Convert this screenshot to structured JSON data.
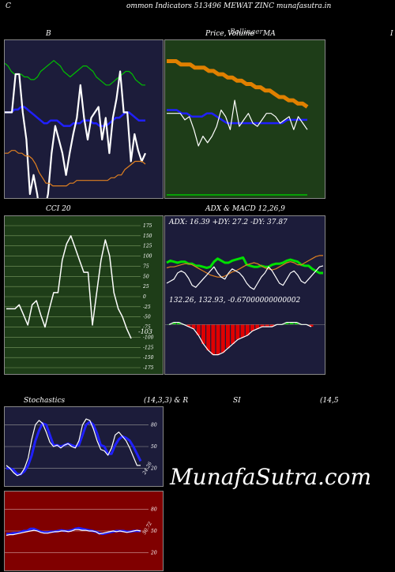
{
  "header": {
    "left_letter": "C",
    "title": "ommon  Indicators 513496  MEWAT ZINC munafasutra.in"
  },
  "watermark": "MunafaSutra.com",
  "colors": {
    "bb_bg": "#1c1c3a",
    "price_bg": "#1e3d18",
    "cci_bg": "#1e3d18",
    "adx_bg": "#1c1c3a",
    "stoch_bg": "#1c1c3a",
    "rsi_bg": "#800000"
  },
  "panels": {
    "bb": {
      "title": "B"
    },
    "price": {
      "title_a": "Price,",
      "title_b": "Volume",
      "title_c": "MA",
      "overlap_text": "Bollinger"
    },
    "cci": {
      "title": "CCI 20",
      "last_value": "-103"
    },
    "adx": {
      "title": "ADX  & MACD 12,26,9",
      "adx_readout": "ADX: 16.39  +DY: 27.2  -DY: 37.87",
      "macd_readout": "132.26,  132.93,  -0.67000000000002"
    },
    "stoch": {
      "title_left": "Stochastics",
      "title_right": "(14,3,3) & R",
      "last_label": "24.26"
    },
    "rsi": {
      "title_mid": "SI",
      "title_right": "(14,5",
      "last_label": "50.72"
    },
    "right_edge_letter": "I"
  },
  "chart_data": [
    {
      "type": "line",
      "name": "Bollinger Bands",
      "series": [
        {
          "color": "#00c000",
          "values": [
            88,
            87,
            85,
            84,
            84,
            84,
            83,
            83,
            82,
            82,
            83,
            85,
            86,
            87,
            88,
            89,
            88,
            87,
            85,
            84,
            83,
            84,
            85,
            86,
            87,
            87,
            86,
            85,
            83,
            82,
            81,
            80,
            80,
            81,
            82,
            83,
            84,
            85,
            85,
            84,
            82,
            81,
            80,
            80
          ]
        },
        {
          "color": "#2020ff",
          "values": [
            70,
            70,
            70,
            71,
            71,
            72,
            72,
            71,
            70,
            69,
            68,
            67,
            66,
            66,
            67,
            67,
            67,
            66,
            65,
            65,
            65,
            66,
            66,
            66,
            67,
            67,
            67,
            66,
            66,
            65,
            65,
            65,
            66,
            67,
            68,
            68,
            69,
            70,
            70,
            69,
            68,
            67,
            67,
            67
          ]
        },
        {
          "color": "#ffffff",
          "values": [
            70,
            70,
            70,
            84,
            84,
            70,
            60,
            40,
            47,
            40,
            30,
            34,
            40,
            55,
            65,
            60,
            55,
            47,
            55,
            62,
            68,
            80,
            68,
            60,
            68,
            70,
            72,
            60,
            68,
            55,
            68,
            75,
            85,
            70,
            70,
            52,
            62,
            56,
            52,
            55
          ]
        },
        {
          "color": "#e08020",
          "values": [
            55,
            55,
            56,
            56,
            55,
            55,
            54,
            54,
            53,
            51,
            48,
            46,
            44,
            44,
            43,
            43,
            43,
            43,
            43,
            44,
            44,
            45,
            45,
            45,
            45,
            45,
            45,
            45,
            45,
            45,
            45,
            46,
            46,
            47,
            47,
            49,
            50,
            51,
            52,
            52,
            52,
            51
          ]
        }
      ],
      "ylim": [
        40,
        95
      ]
    },
    {
      "type": "line",
      "name": "Price, Volume, MA",
      "series": [
        {
          "color": "#e08000",
          "values": [
            141,
            141,
            141,
            140,
            140,
            140,
            139,
            139,
            139,
            138,
            138,
            137,
            137,
            136,
            136,
            135,
            135,
            134,
            134,
            133,
            133,
            132,
            132,
            131,
            130,
            130,
            129,
            129,
            128,
            128,
            127
          ]
        },
        {
          "color": "#2020ff",
          "values": [
            126,
            126,
            126,
            125,
            125,
            124,
            124,
            124,
            125,
            125,
            124,
            123,
            122,
            122,
            122,
            122,
            122,
            122,
            122,
            122,
            122,
            122,
            122,
            122,
            123,
            123,
            123,
            123,
            123
          ]
        },
        {
          "color": "#ffffff",
          "values": [
            125,
            125,
            125,
            125,
            123,
            124,
            120,
            115,
            118,
            116,
            118,
            121,
            126,
            124,
            120,
            129,
            121,
            123,
            125,
            122,
            121,
            123,
            125,
            125,
            124,
            122,
            123,
            124,
            120,
            124,
            122,
            120
          ]
        },
        {
          "color": "#00c000",
          "values": [
            100,
            100,
            100,
            100,
            100,
            100,
            100,
            100,
            100,
            100,
            100,
            100,
            100,
            100,
            100,
            100,
            100,
            100,
            100,
            100,
            100,
            100,
            100,
            100,
            100,
            100,
            100,
            100,
            100,
            100,
            100
          ]
        }
      ],
      "ylim": [
        100,
        145
      ]
    },
    {
      "type": "line",
      "name": "CCI 20",
      "ylim": [
        -175,
        175
      ],
      "yticks": [
        175,
        150,
        125,
        100,
        75,
        50,
        25,
        0,
        -25,
        -50,
        -75,
        -100,
        -125,
        -150,
        -175
      ],
      "series": [
        {
          "color": "#ffffff",
          "values": [
            -30,
            -30,
            -30,
            -20,
            -45,
            -70,
            -20,
            -10,
            -45,
            -75,
            -30,
            10,
            10,
            90,
            130,
            150,
            120,
            90,
            60,
            60,
            -70,
            10,
            90,
            140,
            100,
            10,
            -30,
            -50,
            -80,
            -103
          ]
        }
      ]
    },
    {
      "type": "line",
      "name": "ADX",
      "ylim": [
        0,
        60
      ],
      "series": [
        {
          "color": "#00e000",
          "values": [
            30,
            32,
            31,
            30,
            31,
            31,
            29,
            29,
            27,
            27,
            26,
            25,
            26,
            31,
            34,
            32,
            30,
            30,
            32,
            33,
            34,
            35,
            28,
            27,
            26,
            26,
            27,
            26,
            26,
            28,
            29,
            29,
            30,
            32,
            33,
            32,
            31,
            28,
            27,
            27,
            24,
            22,
            20,
            20
          ]
        },
        {
          "color": "#e08020",
          "values": [
            25,
            26,
            26,
            27,
            28,
            29,
            29,
            28,
            26,
            24,
            22,
            20,
            18,
            17,
            16,
            16,
            17,
            19,
            21,
            22,
            24,
            26,
            28,
            29,
            30,
            29,
            27,
            25,
            24,
            23,
            24,
            26,
            28,
            30,
            31,
            30,
            28,
            28,
            30,
            32,
            34,
            36,
            37,
            37
          ]
        },
        {
          "color": "#ffffff",
          "values": [
            10,
            12,
            14,
            20,
            22,
            20,
            15,
            8,
            6,
            10,
            14,
            18,
            22,
            26,
            20,
            16,
            14,
            20,
            24,
            22,
            20,
            16,
            10,
            6,
            4,
            10,
            16,
            20,
            26,
            22,
            16,
            10,
            8,
            14,
            20,
            22,
            18,
            12,
            10,
            14,
            18,
            22,
            26,
            27
          ]
        }
      ]
    },
    {
      "type": "bar",
      "name": "MACD",
      "ylim": [
        -20,
        10
      ],
      "series": [
        {
          "color": "#ffffff",
          "values": [
            0,
            1,
            1,
            0,
            -1,
            -2,
            -5,
            -9,
            -12,
            -14,
            -14,
            -13,
            -11,
            -9,
            -7,
            -6,
            -5,
            -3,
            -2,
            -1,
            -1,
            -1,
            0,
            0,
            1,
            1,
            1,
            0,
            0,
            -1
          ]
        }
      ]
    },
    {
      "type": "line",
      "name": "Stochastics",
      "ylim": [
        0,
        100
      ],
      "yticks": [
        80,
        50,
        20
      ],
      "series": [
        {
          "color": "#2020ff",
          "values": [
            20,
            20,
            18,
            12,
            12,
            16,
            24,
            38,
            58,
            72,
            82,
            80,
            66,
            52,
            52,
            50,
            52,
            54,
            52,
            50,
            52,
            66,
            80,
            84,
            80,
            68,
            52,
            50,
            40,
            40,
            52,
            60,
            64,
            62,
            58,
            50,
            40,
            30
          ]
        },
        {
          "color": "#ffffff",
          "values": [
            24,
            20,
            14,
            10,
            12,
            20,
            34,
            60,
            80,
            86,
            82,
            70,
            56,
            50,
            52,
            48,
            52,
            54,
            50,
            48,
            58,
            80,
            88,
            86,
            74,
            58,
            46,
            44,
            38,
            48,
            66,
            70,
            64,
            58,
            48,
            36,
            24,
            24
          ]
        }
      ]
    },
    {
      "type": "line",
      "name": "RSI",
      "ylim": [
        0,
        100
      ],
      "yticks": [
        80,
        50,
        20
      ],
      "series": [
        {
          "color": "#2020ff",
          "values": [
            46,
            46,
            47,
            47,
            48,
            50,
            50,
            53,
            53,
            51,
            49,
            48,
            48,
            49,
            49,
            50,
            51,
            50,
            50,
            51,
            53,
            54,
            53,
            52,
            51,
            50,
            49,
            47,
            46,
            47,
            48,
            49,
            50,
            50,
            50,
            49,
            49,
            50,
            50,
            50
          ]
        },
        {
          "color": "#ffffff",
          "values": [
            44,
            45,
            45,
            46,
            47,
            48,
            49,
            50,
            51,
            50,
            48,
            47,
            47,
            48,
            49,
            49,
            50,
            50,
            49,
            50,
            52,
            52,
            51,
            51,
            50,
            50,
            49,
            46,
            47,
            48,
            49,
            50,
            49,
            50,
            49,
            48,
            49,
            50,
            51,
            50
          ]
        }
      ]
    }
  ]
}
